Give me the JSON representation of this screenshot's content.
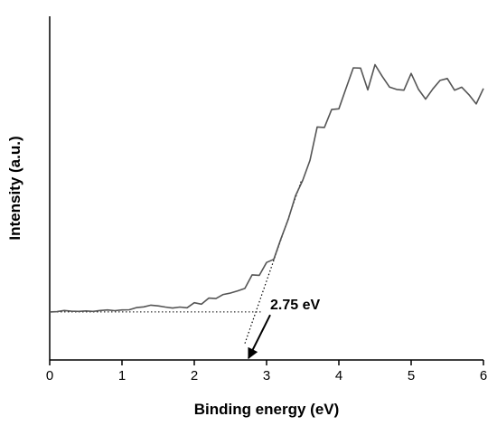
{
  "chart_data": {
    "type": "line",
    "title": "",
    "xlabel": "Binding energy (eV)",
    "ylabel": "Intensity (a.u.)",
    "xlim": [
      0,
      6
    ],
    "ylim": [
      0,
      100
    ],
    "x_ticks": [
      "0",
      "1",
      "2",
      "3",
      "4",
      "5",
      "6"
    ],
    "y_ticks": [],
    "grid": false,
    "legend": "none",
    "series_color": "#555555",
    "series": [
      {
        "x": [
          0,
          0.1,
          0.2,
          0.3,
          0.4,
          0.5,
          0.6,
          0.7,
          0.8,
          0.9,
          1.0,
          1.1,
          1.2,
          1.3,
          1.4,
          1.5,
          1.6,
          1.7,
          1.8,
          1.9,
          2.0,
          2.1,
          2.2,
          2.3,
          2.4,
          2.5,
          2.6,
          2.7,
          2.8,
          2.9,
          3.0,
          3.1,
          3.2,
          3.3,
          3.4,
          3.5,
          3.6,
          3.7,
          3.8,
          3.9,
          4.0,
          4.1,
          4.2,
          4.3,
          4.4,
          4.5,
          4.6,
          4.7,
          4.8,
          4.9,
          5.0,
          5.1,
          5.2,
          5.3,
          5.4,
          5.5,
          5.6,
          5.7,
          5.8,
          5.9,
          6.0
        ],
        "y": [
          9.0,
          9.1,
          9.6,
          9.3,
          9.2,
          9.4,
          9.2,
          9.6,
          9.8,
          9.5,
          9.8,
          9.9,
          10.8,
          11.1,
          11.8,
          11.5,
          11.0,
          10.6,
          11.0,
          10.7,
          12.8,
          12.2,
          14.7,
          14.5,
          16.2,
          16.8,
          17.7,
          18.7,
          24.3,
          24.1,
          29.4,
          30.7,
          39.3,
          47.2,
          56.9,
          63.3,
          71.5,
          85.3,
          85.1,
          92.5,
          92.8,
          101.3,
          109.7,
          109.6,
          100.6,
          111.0,
          106.2,
          101.8,
          100.8,
          100.5,
          107.4,
          100.9,
          96.8,
          101.0,
          104.5,
          105.3,
          100.5,
          101.7,
          98.6,
          94.8,
          101.2
        ]
      }
    ],
    "annotations": [
      {
        "type": "hline",
        "style": "dotted",
        "y": 9.0,
        "x_from": 0,
        "x_to": 2.95
      },
      {
        "type": "tangent",
        "style": "dotted",
        "from": [
          2.7,
          -4.0
        ],
        "to": [
          3.48,
          63.0
        ]
      },
      {
        "type": "arrow",
        "text": "2.75 eV",
        "point_to": [
          2.75,
          0
        ],
        "text_at": [
          3.05,
          10.0
        ]
      }
    ]
  }
}
